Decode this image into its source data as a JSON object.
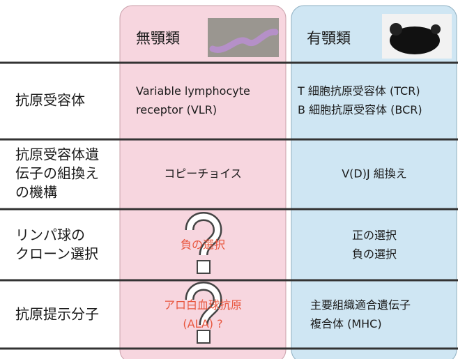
{
  "header": {
    "jawless": "無顎類",
    "jawed": "有顎類"
  },
  "rows": [
    {
      "label": [
        "抗原受容体"
      ],
      "jawless": [
        "Variable lymphocyte",
        "receptor  (VLR)"
      ],
      "jawed": [
        "T 細胞抗原受容体 (TCR)",
        "B 細胞抗原受容体 (BCR)"
      ]
    },
    {
      "label": [
        "抗原受容体遺",
        "伝子の組換え",
        "の機構"
      ],
      "jawless": [
        "コピーチョイス"
      ],
      "jawed": [
        "V(D)J 組換え"
      ]
    },
    {
      "label": [
        "リンパ球の",
        "クローン選択"
      ],
      "jawless": [
        "負の選択"
      ],
      "jawed": [
        "正の選択",
        "負の選択"
      ]
    },
    {
      "label": [
        "抗原提示分子"
      ],
      "jawless": [
        "アロ白血球抗原",
        "(ALA) ?"
      ],
      "jawed": [
        "主要組織適合遺伝子",
        "複合体 (MHC)"
      ]
    }
  ]
}
